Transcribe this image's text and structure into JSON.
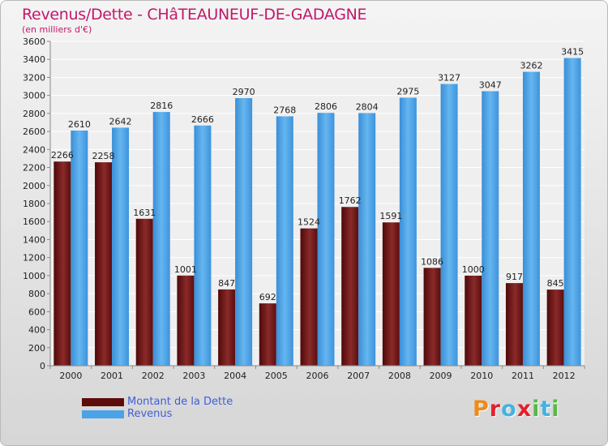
{
  "title": "Revenus/Dette - CHâTEAUNEUF-DE-GADAGNE",
  "subtitle": "(en milliers d'€)",
  "brand": "Proxiti",
  "colors": {
    "debt": "#7a1a1a",
    "revenue": "#4aa3e6",
    "title": "#c2186b",
    "legend_text": "#3f5fd6"
  },
  "legend": [
    {
      "label": "Montant de la Dette",
      "color": "#5e0b0b"
    },
    {
      "label": "Revenus",
      "color": "#4aa3e6"
    }
  ],
  "chart_data": {
    "type": "bar",
    "categories": [
      "2000",
      "2001",
      "2002",
      "2003",
      "2004",
      "2005",
      "2006",
      "2007",
      "2008",
      "2009",
      "2010",
      "2011",
      "2012"
    ],
    "series": [
      {
        "name": "Montant de la Dette",
        "values": [
          2266,
          2258,
          1631,
          1001,
          847,
          692,
          1524,
          1762,
          1591,
          1086,
          1000,
          917,
          845
        ]
      },
      {
        "name": "Revenus",
        "values": [
          2610,
          2642,
          2816,
          2666,
          2970,
          2768,
          2806,
          2804,
          2975,
          3127,
          3047,
          3262,
          3415
        ]
      }
    ],
    "ylim": [
      0,
      3600
    ],
    "yticks": [
      0,
      200,
      400,
      600,
      800,
      1000,
      1200,
      1400,
      1600,
      1800,
      2000,
      2200,
      2400,
      2600,
      2800,
      3000,
      3200,
      3400,
      3600
    ],
    "grid": true
  }
}
